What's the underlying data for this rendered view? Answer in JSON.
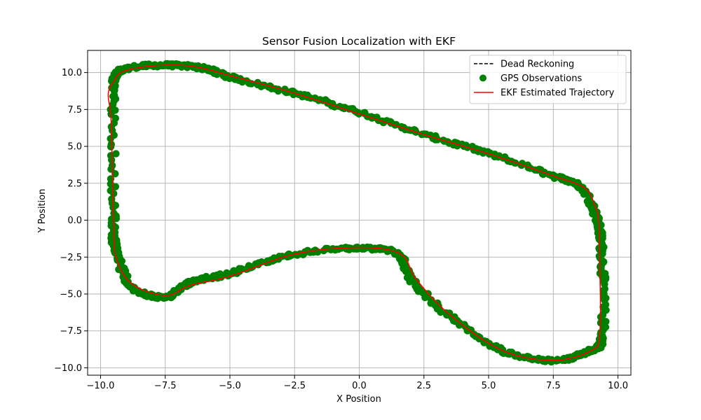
{
  "chart_data": {
    "type": "scatter",
    "title": "Sensor Fusion Localization with EKF",
    "xlabel": "X Position",
    "ylabel": "Y Position",
    "xlim": [
      -10.5,
      10.5
    ],
    "ylim": [
      -10.5,
      11.5
    ],
    "xticks": [
      -10.0,
      -7.5,
      -5.0,
      -2.5,
      0.0,
      2.5,
      5.0,
      7.5,
      10.0
    ],
    "xtick_labels": [
      "−10.0",
      "−7.5",
      "−5.0",
      "−2.5",
      "0.0",
      "2.5",
      "5.0",
      "7.5",
      "10.0"
    ],
    "yticks": [
      -10.0,
      -7.5,
      -5.0,
      -2.5,
      0.0,
      2.5,
      5.0,
      7.5,
      10.0
    ],
    "ytick_labels": [
      "−10.0",
      "−7.5",
      "−5.0",
      "−2.5",
      "0.0",
      "2.5",
      "5.0",
      "7.5",
      "10.0"
    ],
    "grid": true,
    "legend_position": "top-right",
    "series": [
      {
        "name": "Dead Reckoning",
        "kind": "line",
        "style": "dashed",
        "color": "#000000",
        "x": [],
        "y": []
      },
      {
        "name": "GPS Observations",
        "kind": "scatter",
        "color": "#008000",
        "x": [
          -9.5,
          -9.4,
          -8.9,
          -7.6,
          -6.0,
          -5.0,
          -2.5,
          0.0,
          2.5,
          5.0,
          7.5,
          8.6,
          9.2,
          9.4,
          9.4,
          9.0,
          7.5,
          5.5,
          3.5,
          2.0,
          1.5,
          0.0,
          -2.5,
          -5.0,
          -6.5,
          -7.5,
          -8.8,
          -9.4,
          -9.5
        ],
        "y": [
          8.5,
          9.8,
          10.3,
          10.5,
          10.3,
          9.7,
          8.6,
          7.3,
          5.8,
          4.5,
          3.0,
          2.2,
          0.0,
          -3.0,
          -7.8,
          -8.8,
          -9.5,
          -8.8,
          -6.5,
          -4.0,
          -2.3,
          -1.9,
          -2.3,
          -3.6,
          -4.2,
          -5.2,
          -4.5,
          -2.0,
          0.0
        ]
      },
      {
        "name": "EKF Estimated Trajectory",
        "kind": "line",
        "style": "solid",
        "color": "#ff0000",
        "x": [
          -9.45,
          -9.3,
          -8.9,
          -8.0,
          -7.0,
          -6.2,
          -5.0,
          -2.5,
          0.0,
          2.5,
          5.0,
          7.5,
          8.7,
          9.1,
          9.25,
          9.3,
          9.3,
          9.0,
          7.5,
          5.5,
          3.5,
          2.2,
          1.6,
          0.0,
          -2.5,
          -5.0,
          -6.5,
          -7.5,
          -8.8,
          -9.4,
          -9.5,
          -9.55,
          -9.6,
          -9.7,
          -9.45
        ],
        "y": [
          9.5,
          9.9,
          10.2,
          10.45,
          10.5,
          10.35,
          9.8,
          8.6,
          7.2,
          5.8,
          4.5,
          3.0,
          2.2,
          1.0,
          0.0,
          -3.0,
          -7.6,
          -8.8,
          -9.5,
          -8.8,
          -6.4,
          -4.0,
          -2.3,
          -1.85,
          -2.3,
          -3.8,
          -4.4,
          -5.1,
          -4.3,
          -2.5,
          0.0,
          4.0,
          7.0,
          8.6,
          9.5
        ]
      }
    ],
    "colors": {
      "grid": "#b0b0b0",
      "axes": "#000000",
      "legend_border": "#cccccc"
    }
  }
}
